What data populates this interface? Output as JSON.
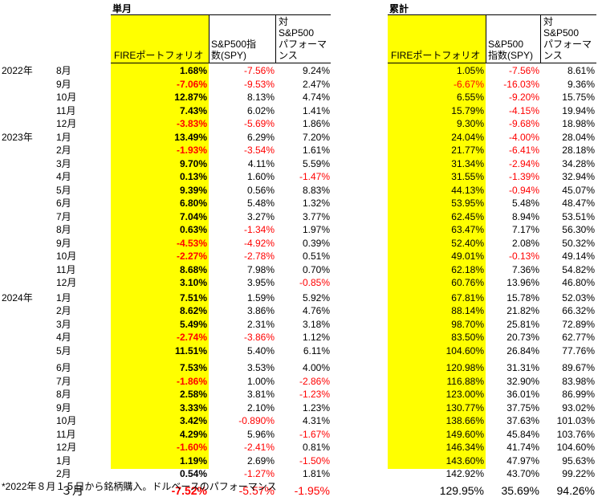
{
  "header": {
    "single_title": "単月",
    "cumulative_title": "累計",
    "col_fire": "FIREポートフォリオ",
    "col_spy_line1": "S&P500指",
    "col_spy_line2": "数(SPY)",
    "col_vs_line1": "対",
    "col_vs_line2": "S&P500",
    "col_vs_line3": "パフォーマ",
    "col_vs_line4": "ンス",
    "cum_col_fire": "FIREポートフォリオ",
    "cum_col_spy_line1": "S&P500",
    "cum_col_spy_line2": "指数(SPY)",
    "cum_col_vs_line1": "対",
    "cum_col_vs_line2": "S&P500",
    "cum_col_vs_line3": "パフォーマ",
    "cum_col_vs_line4": "ンス"
  },
  "rows": [
    {
      "year": "2022年",
      "month": "8月",
      "fire": "1.68%",
      "spy": "-7.56%",
      "vs": "9.24%",
      "cfire": "1.05%",
      "cspy": "-7.56%",
      "cvs": "8.61%"
    },
    {
      "year": "",
      "month": "9月",
      "fire": "-7.06%",
      "spy": "-9.53%",
      "vs": "2.47%",
      "cfire": "-6.67%",
      "cspy": "-16.03%",
      "cvs": "9.36%"
    },
    {
      "year": "",
      "month": "10月",
      "fire": "12.87%",
      "spy": "8.13%",
      "vs": "4.74%",
      "cfire": "6.55%",
      "cspy": "-9.20%",
      "cvs": "15.75%"
    },
    {
      "year": "",
      "month": "11月",
      "fire": "7.43%",
      "spy": "6.02%",
      "vs": "1.41%",
      "cfire": "15.79%",
      "cspy": "-4.15%",
      "cvs": "19.94%"
    },
    {
      "year": "",
      "month": "12月",
      "fire": "-3.83%",
      "spy": "-5.69%",
      "vs": "1.86%",
      "cfire": "9.30%",
      "cspy": "-9.68%",
      "cvs": "18.98%"
    },
    {
      "year": "2023年",
      "month": "1月",
      "fire": "13.49%",
      "spy": "6.29%",
      "vs": "7.20%",
      "cfire": "24.04%",
      "cspy": "-4.00%",
      "cvs": "28.04%"
    },
    {
      "year": "",
      "month": "2月",
      "fire": "-1.93%",
      "spy": "-3.54%",
      "vs": "1.61%",
      "cfire": "21.77%",
      "cspy": "-6.41%",
      "cvs": "28.18%"
    },
    {
      "year": "",
      "month": "3月",
      "fire": "9.70%",
      "spy": "4.11%",
      "vs": "5.59%",
      "cfire": "31.34%",
      "cspy": "-2.94%",
      "cvs": "34.28%"
    },
    {
      "year": "",
      "month": "4月",
      "fire": "0.13%",
      "spy": "1.60%",
      "vs": "-1.47%",
      "cfire": "31.55%",
      "cspy": "-1.39%",
      "cvs": "32.94%"
    },
    {
      "year": "",
      "month": "5月",
      "fire": "9.39%",
      "spy": "0.56%",
      "vs": "8.83%",
      "cfire": "44.13%",
      "cspy": "-0.94%",
      "cvs": "45.07%"
    },
    {
      "year": "",
      "month": "6月",
      "fire": "6.80%",
      "spy": "5.48%",
      "vs": "1.32%",
      "cfire": "53.95%",
      "cspy": "5.48%",
      "cvs": "48.47%"
    },
    {
      "year": "",
      "month": "7月",
      "fire": "7.04%",
      "spy": "3.27%",
      "vs": "3.77%",
      "cfire": "62.45%",
      "cspy": "8.94%",
      "cvs": "53.51%"
    },
    {
      "year": "",
      "month": "8月",
      "fire": "0.63%",
      "spy": "-1.34%",
      "vs": "1.97%",
      "cfire": "63.47%",
      "cspy": "7.17%",
      "cvs": "56.30%"
    },
    {
      "year": "",
      "month": "9月",
      "fire": "-4.53%",
      "spy": "-4.92%",
      "vs": "0.39%",
      "cfire": "52.40%",
      "cspy": "2.08%",
      "cvs": "50.32%"
    },
    {
      "year": "",
      "month": "10月",
      "fire": "-2.27%",
      "spy": "-2.78%",
      "vs": "0.51%",
      "cfire": "49.01%",
      "cspy": "-0.13%",
      "cvs": "49.14%"
    },
    {
      "year": "",
      "month": "11月",
      "fire": "8.68%",
      "spy": "7.98%",
      "vs": "0.70%",
      "cfire": "62.18%",
      "cspy": "7.36%",
      "cvs": "54.82%"
    },
    {
      "year": "",
      "month": "12月",
      "fire": "3.10%",
      "spy": "3.95%",
      "vs": "-0.85%",
      "cfire": "60.76%",
      "cspy": "13.96%",
      "cvs": "46.80%"
    },
    {
      "year": "2024年",
      "month": "1月",
      "fire": "7.51%",
      "spy": "1.59%",
      "vs": "5.92%",
      "cfire": "67.81%",
      "cspy": "15.78%",
      "cvs": "52.03%"
    },
    {
      "year": "",
      "month": "2月",
      "fire": "8.62%",
      "spy": "3.86%",
      "vs": "4.76%",
      "cfire": "88.14%",
      "cspy": "21.82%",
      "cvs": "66.32%"
    },
    {
      "year": "",
      "month": "3月",
      "fire": "5.49%",
      "spy": "2.31%",
      "vs": "3.18%",
      "cfire": "98.70%",
      "cspy": "25.81%",
      "cvs": "72.89%"
    },
    {
      "year": "",
      "month": "4月",
      "fire": "-2.74%",
      "spy": "-3.86%",
      "vs": "1.12%",
      "cfire": "83.50%",
      "cspy": "20.73%",
      "cvs": "62.77%"
    },
    {
      "year": "",
      "month": "5月",
      "fire": "11.51%",
      "spy": "5.40%",
      "vs": "6.11%",
      "cfire": "104.60%",
      "cspy": "26.84%",
      "cvs": "77.76%"
    },
    {
      "year": "",
      "month": "6月",
      "fire": "7.53%",
      "spy": "3.53%",
      "vs": "4.00%",
      "cfire": "120.98%",
      "cspy": "31.31%",
      "cvs": "89.67%"
    },
    {
      "year": "",
      "month": "7月",
      "fire": "-1.86%",
      "spy": "1.00%",
      "vs": "-2.86%",
      "cfire": "116.88%",
      "cspy": "32.90%",
      "cvs": "83.98%"
    },
    {
      "year": "",
      "month": "8月",
      "fire": "2.58%",
      "spy": "3.81%",
      "vs": "-1.23%",
      "cfire": "123.00%",
      "cspy": "36.01%",
      "cvs": "86.99%"
    },
    {
      "year": "",
      "month": "9月",
      "fire": "3.33%",
      "spy": "2.10%",
      "vs": "1.23%",
      "cfire": "130.77%",
      "cspy": "37.75%",
      "cvs": "93.02%"
    },
    {
      "year": "",
      "month": "10月",
      "fire": "3.42%",
      "spy": "-0.890%",
      "vs": "4.31%",
      "cfire": "138.66%",
      "cspy": "37.63%",
      "cvs": "101.03%"
    },
    {
      "year": "",
      "month": "11月",
      "fire": "4.29%",
      "spy": "5.96%",
      "vs": "-1.67%",
      "cfire": "149.60%",
      "cspy": "45.84%",
      "cvs": "103.76%"
    },
    {
      "year": "",
      "month": "12月",
      "fire": "-1.60%",
      "spy": "-2.41%",
      "vs": "0.81%",
      "cfire": "146.34%",
      "cspy": "41.74%",
      "cvs": "104.60%"
    },
    {
      "year": "",
      "month": "1月",
      "fire": "1.19%",
      "spy": "2.69%",
      "vs": "-1.50%",
      "cfire": "143.60%",
      "cspy": "47.97%",
      "cvs": "95.63%"
    },
    {
      "year": "",
      "month": "2月",
      "fire": "0.54%",
      "spy": "-1.27%",
      "vs": "1.81%",
      "cfire": "142.92%",
      "cspy": "43.70%",
      "cvs": "99.22%"
    },
    {
      "year": "",
      "month": "３月",
      "fire": "-7.52%",
      "spy": "-5.57%",
      "vs": "-1.95%",
      "cfire": "129.95%",
      "cspy": "35.69%",
      "cvs": "94.26%"
    }
  ],
  "footnote": "*2022年８月１５日から銘柄購入。ドルベースのパフォーマンス",
  "colors": {
    "highlight": "#ffff00",
    "negative": "#ff0000",
    "text": "#000000"
  }
}
